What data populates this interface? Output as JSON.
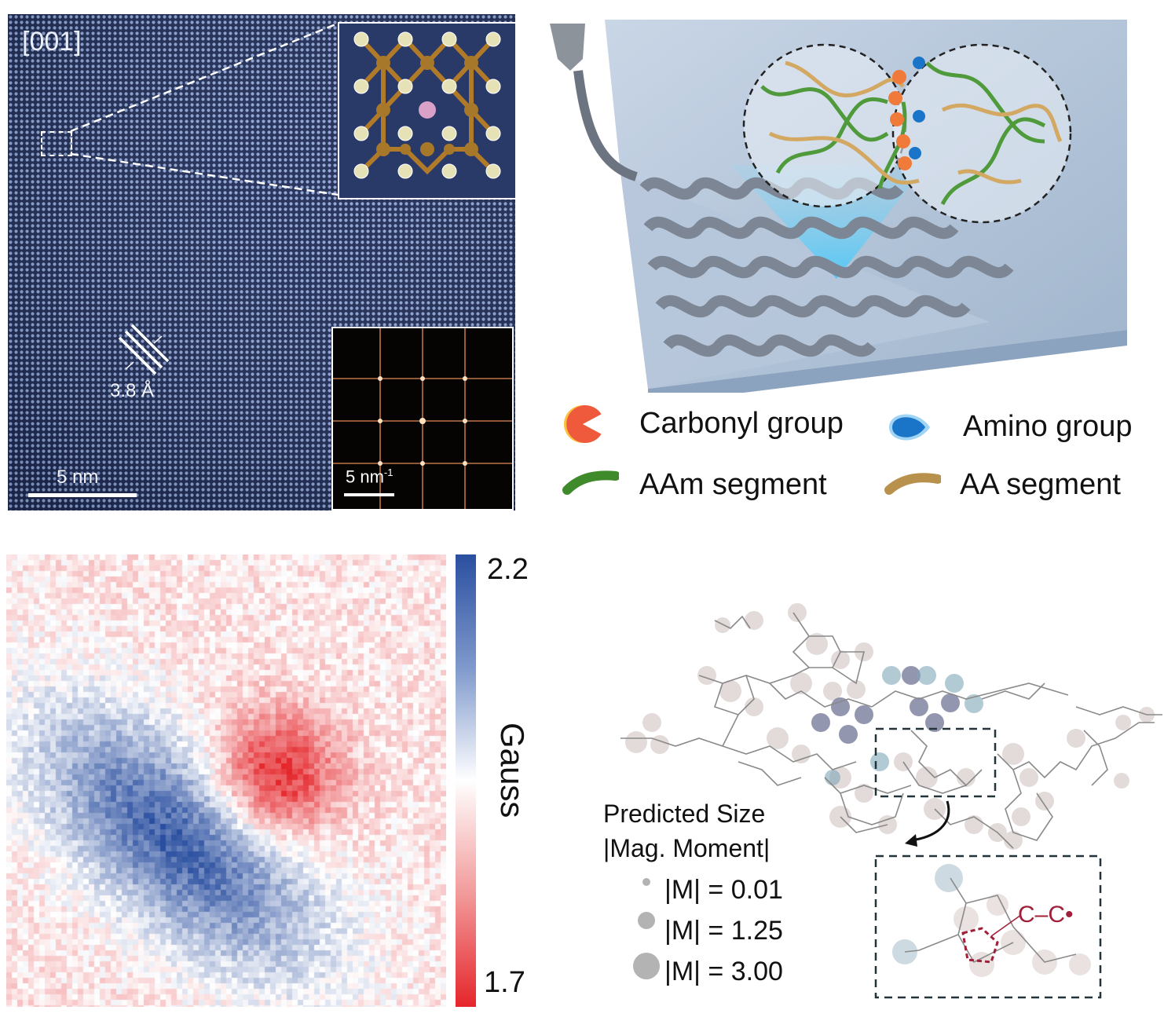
{
  "tem": {
    "zone_axis": "[001]",
    "lattice_spacing": "3.8 Å",
    "scale_bar": "5 nm",
    "fft_scale_bar": "5 nm",
    "fft_scale_exponent": "-1",
    "colors": {
      "background": "#1f2d57",
      "atom_gold": "#a8782a",
      "atom_pale": "#e6e2b8",
      "atom_center": "#d9a0c8"
    }
  },
  "legend": {
    "carbonyl": "Carbonyl group",
    "amino": "Amino group",
    "aam": "AAm segment",
    "aa": "AA segment",
    "colors": {
      "carbonyl": "#f07a3a",
      "amino": "#1a74c8",
      "aam": "#4f9a3a",
      "aa": "#c9a05a"
    }
  },
  "heatmap": {
    "colorbar_max": "2.2",
    "colorbar_min": "1.7",
    "colorbar_title": "Gauss",
    "colors": {
      "high": "#2a4fa0",
      "low": "#e5262b",
      "mid": "#ffffff"
    }
  },
  "molecule": {
    "legend_title_1": "Predicted Size",
    "legend_title_2": "|Mag. Moment|",
    "rows": [
      {
        "label": "|M| = 0.01",
        "moment": 0.01
      },
      {
        "label": "|M| = 1.25",
        "moment": 1.25
      },
      {
        "label": "|M| = 3.00",
        "moment": 3.0
      }
    ],
    "radical_label": "C–C•",
    "colors": {
      "radical": "#a0203a",
      "bond": "#8a8a8a"
    }
  }
}
